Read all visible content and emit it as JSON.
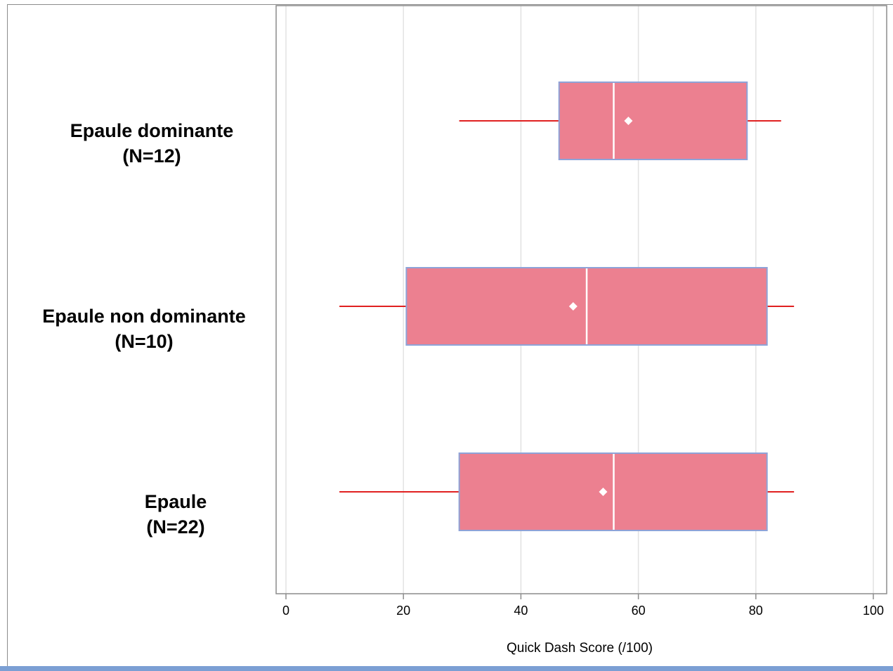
{
  "chart_data": {
    "type": "boxplot",
    "orientation": "horizontal",
    "title": "",
    "xlabel": "Quick Dash Score (/100)",
    "ylabel": "",
    "xlim": [
      0,
      100
    ],
    "x_ticks": [
      0,
      20,
      40,
      60,
      80,
      100
    ],
    "grid": "vertical",
    "colors": {
      "box_fill": "#ec8090",
      "box_border": "#8ea3d8",
      "whisker": "#e02020",
      "median": "#ffffff",
      "mean_marker": "#ffffff",
      "grid": "#e2e2e2"
    },
    "series": [
      {
        "label_lines": [
          "Epaule dominante",
          "(N=12)"
        ],
        "whisker_low": 29.5,
        "q1": 46.5,
        "median": 55.8,
        "q3": 78.5,
        "whisker_high": 84.3,
        "mean": 58.3
      },
      {
        "label_lines": [
          "Epaule non dominante",
          "(N=10)"
        ],
        "whisker_low": 9.1,
        "q1": 20.5,
        "median": 51.2,
        "q3": 81.9,
        "whisker_high": 86.5,
        "mean": 48.9
      },
      {
        "label_lines": [
          "Epaule",
          "(N=22)"
        ],
        "whisker_low": 9.1,
        "q1": 29.5,
        "median": 55.8,
        "q3": 81.9,
        "whisker_high": 86.5,
        "mean": 54.0
      }
    ]
  }
}
